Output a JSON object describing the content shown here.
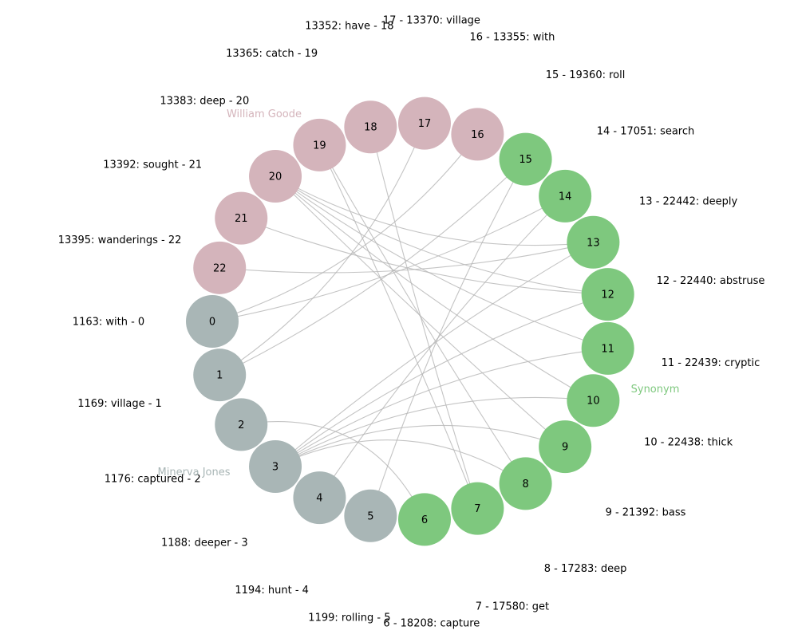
{
  "groups": [
    {
      "name": "William Goode",
      "color": "#d4b4bb"
    },
    {
      "name": "Minerva Jones",
      "color": "#a9b6b6"
    },
    {
      "name": "Synonym",
      "color": "#7ec87e"
    }
  ],
  "nodes": [
    {
      "id": "0",
      "group": 1,
      "label": "1163: with - 0"
    },
    {
      "id": "1",
      "group": 1,
      "label": "1169: village - 1"
    },
    {
      "id": "2",
      "group": 1,
      "label": "1176: captured - 2"
    },
    {
      "id": "3",
      "group": 1,
      "label": "1188: deeper - 3"
    },
    {
      "id": "4",
      "group": 1,
      "label": "1194: hunt - 4"
    },
    {
      "id": "5",
      "group": 1,
      "label": "1199: rolling - 5"
    },
    {
      "id": "6",
      "group": 2,
      "label": "6 - 18208: capture"
    },
    {
      "id": "7",
      "group": 2,
      "label": "7 - 17580: get"
    },
    {
      "id": "8",
      "group": 2,
      "label": "8 - 17283: deep"
    },
    {
      "id": "9",
      "group": 2,
      "label": "9 - 21392: bass"
    },
    {
      "id": "10",
      "group": 2,
      "label": "10 - 22438: thick"
    },
    {
      "id": "11",
      "group": 2,
      "label": "11 - 22439: cryptic"
    },
    {
      "id": "12",
      "group": 2,
      "label": "12 - 22440: abstruse"
    },
    {
      "id": "13",
      "group": 2,
      "label": "13 - 22442: deeply"
    },
    {
      "id": "14",
      "group": 2,
      "label": "14 - 17051: search"
    },
    {
      "id": "15",
      "group": 2,
      "label": "15 - 19360: roll"
    },
    {
      "id": "16",
      "group": 0,
      "label": "16 - 13355: with"
    },
    {
      "id": "17",
      "group": 0,
      "label": "17 - 13370: village"
    },
    {
      "id": "18",
      "group": 0,
      "label": "13352: have - 18"
    },
    {
      "id": "19",
      "group": 0,
      "label": "13365: catch - 19"
    },
    {
      "id": "20",
      "group": 0,
      "label": "13383: deep - 20"
    },
    {
      "id": "21",
      "group": 0,
      "label": "13392: sought - 21"
    },
    {
      "id": "22",
      "group": 0,
      "label": "13395: wanderings - 22"
    }
  ],
  "edges": [
    [
      0,
      14
    ],
    [
      1,
      15
    ],
    [
      2,
      6
    ],
    [
      3,
      8
    ],
    [
      3,
      9
    ],
    [
      3,
      10
    ],
    [
      3,
      11
    ],
    [
      3,
      12
    ],
    [
      3,
      13
    ],
    [
      4,
      14
    ],
    [
      5,
      15
    ],
    [
      16,
      0
    ],
    [
      17,
      1
    ],
    [
      18,
      7
    ],
    [
      19,
      7
    ],
    [
      19,
      8
    ],
    [
      20,
      9
    ],
    [
      20,
      10
    ],
    [
      20,
      11
    ],
    [
      20,
      12
    ],
    [
      20,
      13
    ],
    [
      21,
      12
    ],
    [
      22,
      13
    ]
  ],
  "edge_color": "#b5b5b5"
}
